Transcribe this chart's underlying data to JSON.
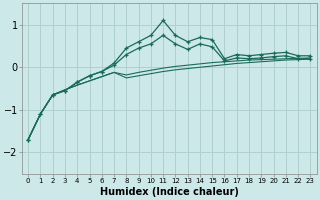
{
  "xlabel": "Humidex (Indice chaleur)",
  "ylabel": "",
  "background_color": "#cde8e8",
  "grid_color": "#b0d0d0",
  "line_color": "#1a6b5a",
  "xlim": [
    -0.5,
    23.5
  ],
  "ylim": [
    -2.5,
    1.5
  ],
  "x": [
    0,
    1,
    2,
    3,
    4,
    5,
    6,
    7,
    8,
    9,
    10,
    11,
    12,
    13,
    14,
    15,
    16,
    17,
    18,
    19,
    20,
    21,
    22,
    23
  ],
  "line1": [
    -1.7,
    -1.1,
    -0.65,
    -0.55,
    -0.35,
    -0.2,
    -0.1,
    0.1,
    0.45,
    0.6,
    0.75,
    1.1,
    0.75,
    0.6,
    0.7,
    0.65,
    0.2,
    0.3,
    0.27,
    0.3,
    0.33,
    0.35,
    0.27,
    0.27
  ],
  "line2": [
    -1.7,
    -1.1,
    -0.65,
    -0.55,
    -0.35,
    -0.2,
    -0.1,
    0.05,
    0.3,
    0.45,
    0.55,
    0.75,
    0.55,
    0.42,
    0.55,
    0.48,
    0.15,
    0.22,
    0.2,
    0.22,
    0.25,
    0.27,
    0.2,
    0.2
  ],
  "line3": [
    -1.7,
    -1.1,
    -0.65,
    -0.53,
    -0.42,
    -0.32,
    -0.22,
    -0.12,
    -0.18,
    -0.12,
    -0.07,
    -0.02,
    0.02,
    0.05,
    0.08,
    0.11,
    0.13,
    0.15,
    0.17,
    0.18,
    0.19,
    0.2,
    0.21,
    0.22
  ],
  "line4": [
    -1.7,
    -1.1,
    -0.65,
    -0.53,
    -0.42,
    -0.32,
    -0.22,
    -0.12,
    -0.25,
    -0.2,
    -0.15,
    -0.1,
    -0.06,
    -0.03,
    0.0,
    0.03,
    0.06,
    0.09,
    0.11,
    0.13,
    0.15,
    0.17,
    0.18,
    0.19
  ]
}
